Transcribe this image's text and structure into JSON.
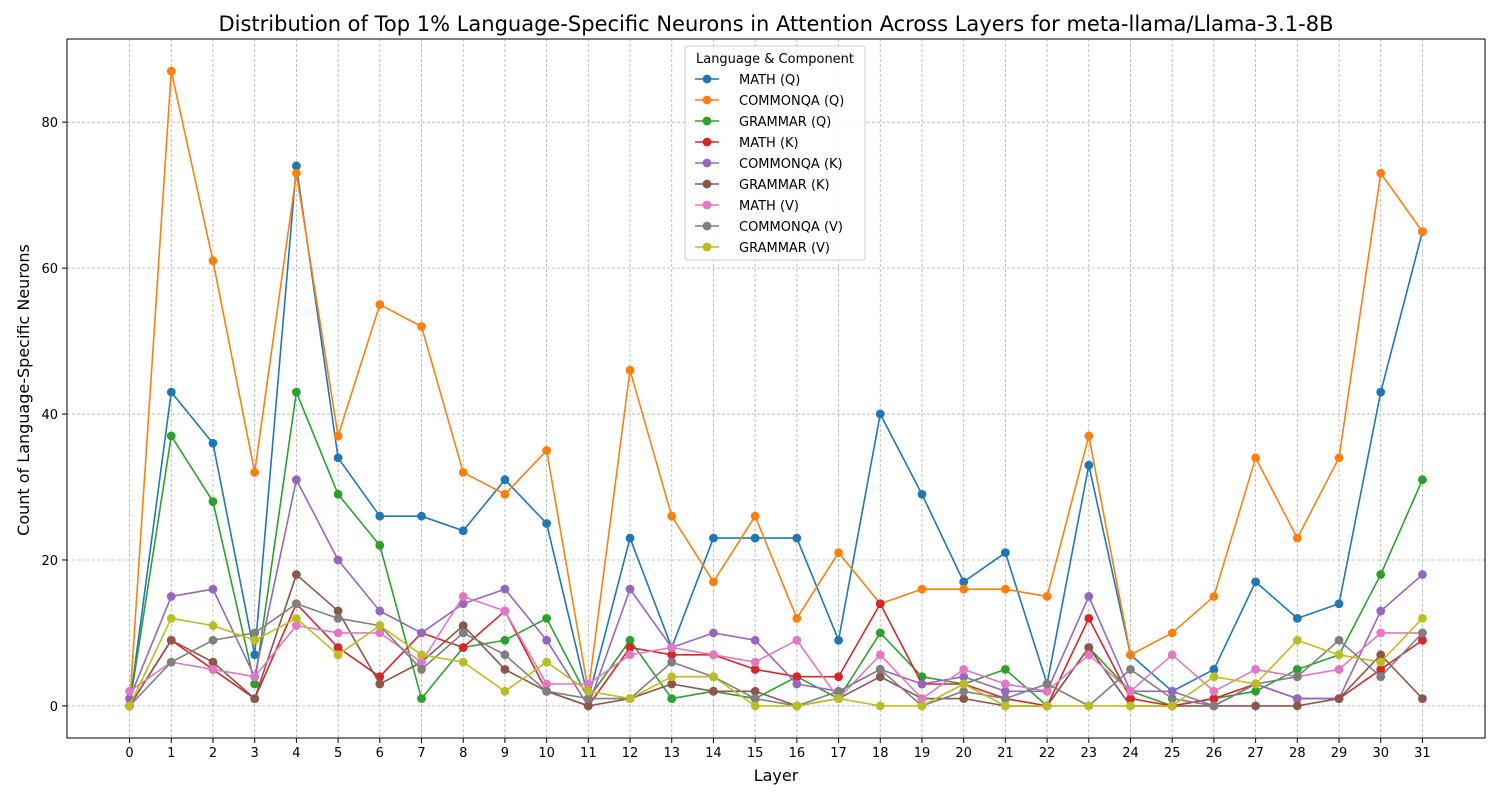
{
  "chart_data": {
    "type": "line",
    "title": "Distribution of Top 1% Language-Specific Neurons in Attention Across Layers for meta-llama/Llama-3.1-8B",
    "xlabel": "Layer",
    "ylabel": "Count of Language-Specific Neurons",
    "xlim": [
      -1.5,
      32.5
    ],
    "ylim": [
      -4.4,
      91.4
    ],
    "y_ticks": [
      0,
      20,
      40,
      60,
      80
    ],
    "grid": true,
    "legend": {
      "title": "Language & Component",
      "placement": "top-center"
    },
    "x": [
      0,
      1,
      2,
      3,
      4,
      5,
      6,
      7,
      8,
      9,
      10,
      11,
      12,
      13,
      14,
      15,
      16,
      17,
      18,
      19,
      20,
      21,
      22,
      23,
      24,
      25,
      26,
      27,
      28,
      29,
      30,
      31
    ],
    "series": [
      {
        "name": "MATH (Q)",
        "color": "#1f77b4",
        "values": [
          0,
          43,
          36,
          7,
          74,
          34,
          26,
          26,
          24,
          31,
          25,
          1,
          23,
          8,
          23,
          23,
          23,
          9,
          40,
          29,
          17,
          21,
          3,
          33,
          7,
          2,
          5,
          17,
          12,
          14,
          43,
          65
        ]
      },
      {
        "name": "COMMONQA (Q)",
        "color": "#ff7f0e",
        "values": [
          0,
          87,
          61,
          32,
          73,
          37,
          55,
          52,
          32,
          29,
          35,
          2,
          46,
          26,
          17,
          26,
          12,
          21,
          14,
          16,
          16,
          16,
          15,
          37,
          7,
          10,
          15,
          34,
          23,
          34,
          73,
          65
        ]
      },
      {
        "name": "GRAMMAR (Q)",
        "color": "#2ca02c",
        "values": [
          0,
          37,
          28,
          3,
          43,
          29,
          22,
          1,
          8,
          9,
          12,
          1,
          9,
          1,
          2,
          1,
          4,
          1,
          10,
          4,
          3,
          5,
          0,
          8,
          2,
          0,
          1,
          2,
          5,
          7,
          18,
          31
        ]
      },
      {
        "name": "MATH (K)",
        "color": "#d62728",
        "values": [
          0,
          9,
          5,
          1,
          14,
          8,
          4,
          10,
          8,
          13,
          2,
          0,
          8,
          7,
          7,
          5,
          4,
          4,
          14,
          3,
          3,
          1,
          0,
          12,
          1,
          0,
          1,
          3,
          1,
          1,
          5,
          9
        ]
      },
      {
        "name": "COMMONQA (K)",
        "color": "#9467bd",
        "values": [
          1,
          15,
          16,
          4,
          31,
          20,
          13,
          10,
          14,
          16,
          9,
          0,
          16,
          8,
          10,
          9,
          3,
          2,
          5,
          3,
          4,
          2,
          2,
          15,
          2,
          2,
          0,
          3,
          1,
          1,
          13,
          18
        ]
      },
      {
        "name": "GRAMMAR (K)",
        "color": "#8c564b",
        "values": [
          0,
          9,
          6,
          1,
          18,
          13,
          3,
          6,
          11,
          5,
          2,
          0,
          1,
          3,
          2,
          2,
          0,
          1,
          4,
          1,
          1,
          0,
          0,
          8,
          0,
          0,
          0,
          0,
          0,
          1,
          7,
          1
        ]
      },
      {
        "name": "MATH (V)",
        "color": "#e377c2",
        "values": [
          2,
          6,
          5,
          4,
          11,
          10,
          10,
          6,
          15,
          13,
          3,
          3,
          7,
          8,
          7,
          6,
          9,
          1,
          7,
          1,
          5,
          3,
          2,
          7,
          2,
          7,
          2,
          5,
          4,
          5,
          10,
          10
        ]
      },
      {
        "name": "COMMONQA (V)",
        "color": "#7f7f7f",
        "values": [
          0,
          6,
          9,
          10,
          14,
          12,
          11,
          5,
          10,
          7,
          2,
          1,
          1,
          6,
          4,
          1,
          0,
          2,
          5,
          0,
          2,
          1,
          3,
          0,
          5,
          1,
          0,
          3,
          4,
          9,
          4,
          10
        ]
      },
      {
        "name": "GRAMMAR (V)",
        "color": "#bcbd22",
        "values": [
          0,
          12,
          11,
          9,
          12,
          7,
          11,
          7,
          6,
          2,
          6,
          2,
          1,
          4,
          4,
          0,
          0,
          1,
          0,
          0,
          3,
          0,
          0,
          0,
          0,
          0,
          4,
          3,
          9,
          7,
          6,
          12
        ]
      }
    ]
  }
}
